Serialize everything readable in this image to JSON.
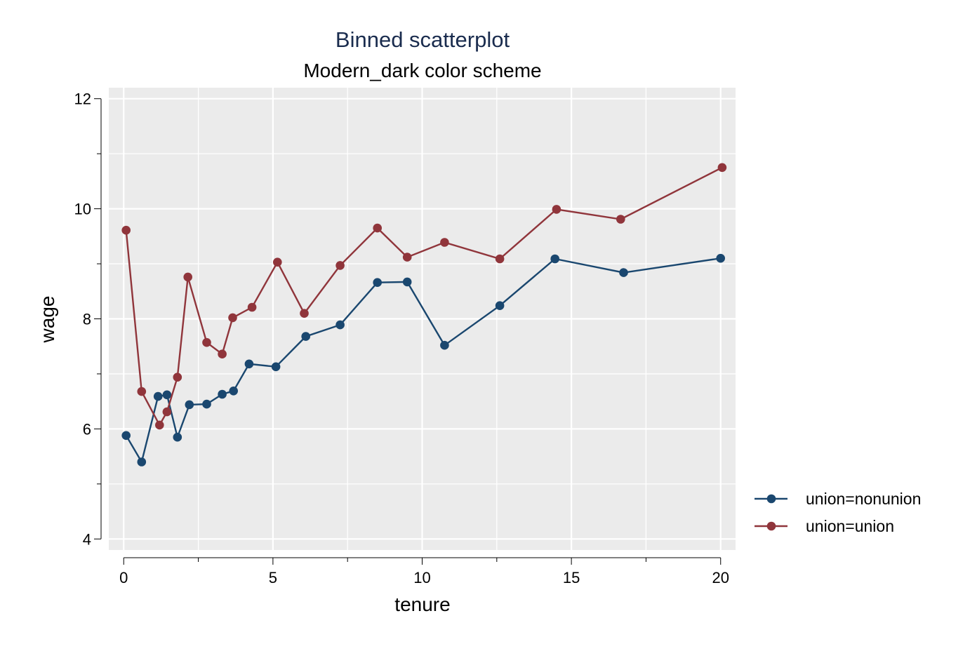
{
  "chart_data": {
    "type": "line",
    "title": "Binned scatterplot",
    "subtitle": "Modern_dark color scheme",
    "xlabel": "tenure",
    "ylabel": "wage",
    "xlim": [
      -0.5,
      20.5
    ],
    "ylim": [
      3.8,
      12.2
    ],
    "xticks": [
      0,
      5,
      10,
      15,
      20
    ],
    "yticks": [
      4,
      6,
      8,
      10,
      12
    ],
    "xgrid": [
      0,
      2.5,
      5,
      7.5,
      10,
      12.5,
      15,
      17.5,
      20
    ],
    "ygrid": [
      4,
      5,
      6,
      7,
      8,
      9,
      10,
      11,
      12
    ],
    "grid": true,
    "background": "#ebebeb",
    "legend_position": "right",
    "series": [
      {
        "name": "union=nonunion",
        "color": "#1a476f",
        "points": [
          [
            0.08,
            5.88
          ],
          [
            0.6,
            5.4
          ],
          [
            1.15,
            6.59
          ],
          [
            1.45,
            6.62
          ],
          [
            1.8,
            5.85
          ],
          [
            2.2,
            6.44
          ],
          [
            2.78,
            6.45
          ],
          [
            3.3,
            6.63
          ],
          [
            3.68,
            6.69
          ],
          [
            4.2,
            7.18
          ],
          [
            5.1,
            7.13
          ],
          [
            6.1,
            7.68
          ],
          [
            7.25,
            7.89
          ],
          [
            8.5,
            8.66
          ],
          [
            9.5,
            8.67
          ],
          [
            10.75,
            7.52
          ],
          [
            12.6,
            8.24
          ],
          [
            14.45,
            9.09
          ],
          [
            16.75,
            8.84
          ],
          [
            20.0,
            9.1
          ]
        ]
      },
      {
        "name": "union=union",
        "color": "#90353b",
        "points": [
          [
            0.08,
            9.61
          ],
          [
            0.6,
            6.68
          ],
          [
            1.2,
            6.07
          ],
          [
            1.45,
            6.31
          ],
          [
            1.8,
            6.94
          ],
          [
            2.15,
            8.76
          ],
          [
            2.78,
            7.57
          ],
          [
            3.3,
            7.36
          ],
          [
            3.65,
            8.02
          ],
          [
            4.3,
            8.21
          ],
          [
            5.15,
            9.03
          ],
          [
            6.05,
            8.1
          ],
          [
            7.25,
            8.97
          ],
          [
            8.5,
            9.65
          ],
          [
            9.5,
            9.12
          ],
          [
            10.75,
            9.39
          ],
          [
            12.6,
            9.09
          ],
          [
            14.5,
            9.99
          ],
          [
            16.65,
            9.81
          ],
          [
            20.05,
            10.75
          ]
        ]
      }
    ]
  }
}
